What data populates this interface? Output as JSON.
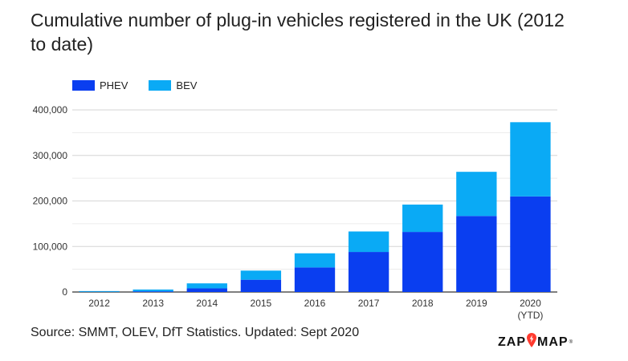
{
  "header": {
    "title": "Cumulative number of plug-in vehicles registered in the UK (2012 to date)"
  },
  "footer": {
    "source": "Source: SMMT, OLEV, DfT Statistics. Updated: Sept 2020",
    "logo_left": "ZAP",
    "logo_right": "MAP",
    "logo_mark": "®"
  },
  "colors": {
    "PHEV": "#0a3ef0",
    "BEV": "#0aaaf5"
  },
  "chart_data": {
    "type": "bar",
    "stacked": true,
    "title": "Cumulative number of plug-in vehicles registered in the UK (2012 to date)",
    "xlabel": "",
    "ylabel": "",
    "categories": [
      "2012",
      "2013",
      "2014",
      "2015",
      "2016",
      "2017",
      "2018",
      "2019",
      "2020\n(YTD)"
    ],
    "category_lines": [
      [
        "2012"
      ],
      [
        "2013"
      ],
      [
        "2014"
      ],
      [
        "2015"
      ],
      [
        "2016"
      ],
      [
        "2017"
      ],
      [
        "2018"
      ],
      [
        "2019"
      ],
      [
        "2020",
        "(YTD)"
      ]
    ],
    "series": [
      {
        "name": "PHEV",
        "values": [
          400,
          1500,
          8000,
          27000,
          54000,
          88000,
          132000,
          167000,
          210000
        ]
      },
      {
        "name": "BEV",
        "values": [
          1600,
          4000,
          11000,
          20000,
          31000,
          45000,
          60000,
          97000,
          163000
        ]
      }
    ],
    "ylim": [
      0,
      400000
    ],
    "yticks": [
      0,
      100000,
      200000,
      300000,
      400000
    ],
    "ytick_labels": [
      "0",
      "100,000",
      "200,000",
      "300,000",
      "400,000"
    ],
    "grid": true,
    "legend_position": "top-left"
  }
}
